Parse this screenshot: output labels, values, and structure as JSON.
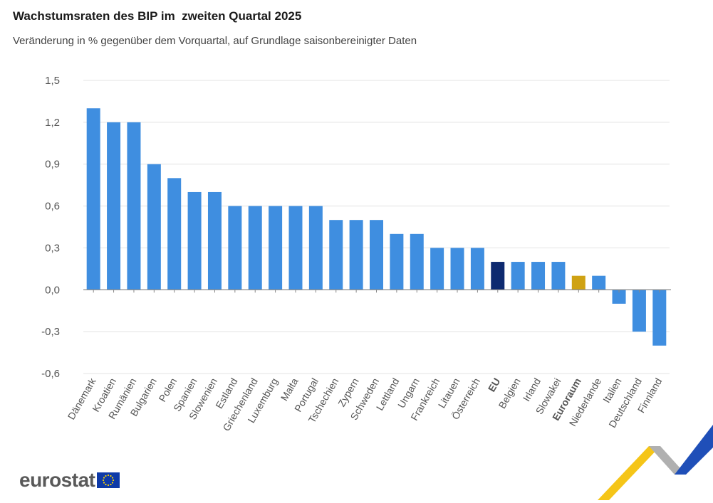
{
  "header": {
    "title": "Wachstumsraten des BIP im  zweiten Quartal 2025",
    "subtitle": "Veränderung in % gegenüber dem Vorquartal, auf Grundlage saisonbereinigter Daten"
  },
  "logo": {
    "text": "eurostat",
    "flag_icon": "eu-flag-icon"
  },
  "colors": {
    "bar": "#3f8ee0",
    "eu": "#0e2a70",
    "euroraum": "#cfa213",
    "grid": "#e3e3e3",
    "axis": "#888888"
  },
  "chart_data": {
    "type": "bar",
    "title": "Wachstumsraten des BIP im  zweiten Quartal 2025",
    "subtitle": "Veränderung in % gegenüber dem Vorquartal, auf Grundlage saisonbereinigter Daten",
    "xlabel": "",
    "ylabel": "",
    "ylim": [
      -0.6,
      1.5
    ],
    "yticks": [
      "1,5",
      "1,2",
      "0,9",
      "0,6",
      "0,3",
      "0,0",
      "-0,3",
      "-0,6"
    ],
    "ytick_values": [
      1.5,
      1.2,
      0.9,
      0.6,
      0.3,
      0.0,
      -0.3,
      -0.6
    ],
    "grid": true,
    "categories": [
      "Dänemark",
      "Kroatien",
      "Rumänien",
      "Bulgarien",
      "Polen",
      "Spanien",
      "Slowenien",
      "Estland",
      "Griechenland",
      "Luxemburg",
      "Malta",
      "Portugal",
      "Tschechien",
      "Zypern",
      "Schweden",
      "Lettland",
      "Ungarn",
      "Frankreich",
      "Litauen",
      "Österreich",
      "EU",
      "Belgien",
      "Irland",
      "Slowakei",
      "Euroraum",
      "Niederlande",
      "Italien",
      "Deutschland",
      "Finnland"
    ],
    "values": [
      1.3,
      1.2,
      1.2,
      0.9,
      0.8,
      0.7,
      0.7,
      0.6,
      0.6,
      0.6,
      0.6,
      0.6,
      0.5,
      0.5,
      0.5,
      0.4,
      0.4,
      0.3,
      0.3,
      0.3,
      0.2,
      0.2,
      0.2,
      0.2,
      0.1,
      0.1,
      -0.1,
      -0.3,
      -0.4
    ],
    "highlight": {
      "EU": "eu",
      "Euroraum": "euroraum"
    },
    "bold_labels": [
      "EU",
      "Euroraum"
    ]
  }
}
